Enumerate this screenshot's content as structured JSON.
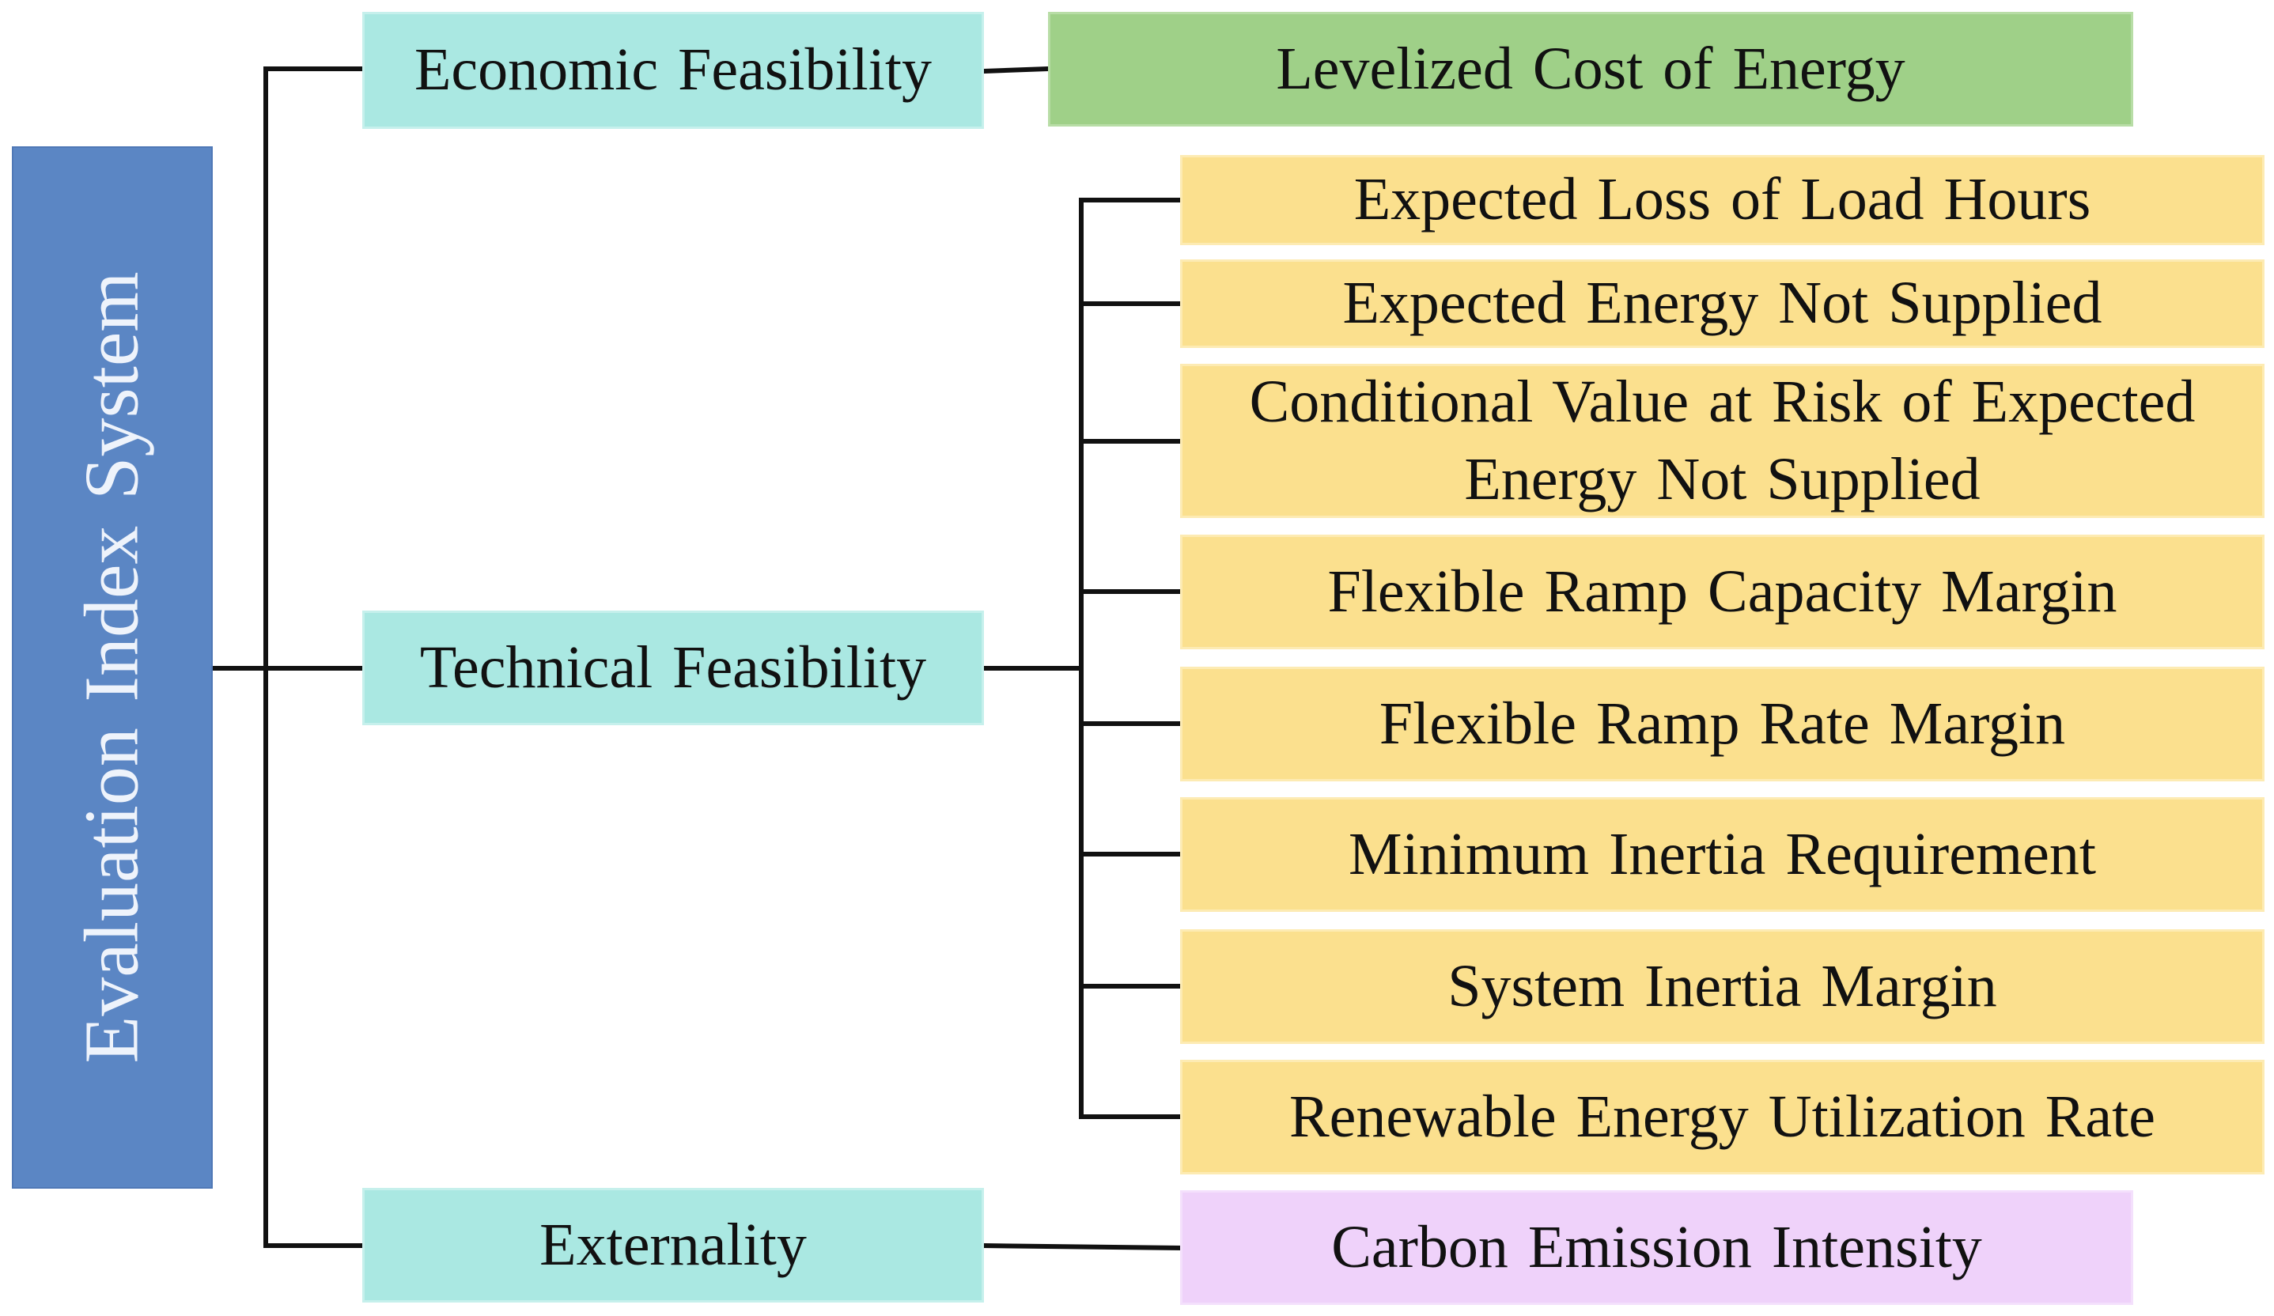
{
  "root": {
    "label": "Evaluation Index System",
    "color": "#5b86c4"
  },
  "categories": {
    "economic": "Economic Feasibility",
    "technical": "Technical Feasibility",
    "externality": "Externality"
  },
  "indicators": {
    "economic": [
      "Levelized Cost of Energy"
    ],
    "technical": [
      "Expected Loss of Load Hours",
      "Expected Energy Not Supplied",
      "Conditional Value at Risk of Expected Energy Not Supplied",
      "Flexible Ramp Capacity Margin",
      "Flexible Ramp Rate Margin",
      "Minimum Inertia Requirement",
      "System Inertia Margin",
      "Renewable Energy Utilization Rate"
    ],
    "externality": [
      "Carbon Emission Intensity"
    ]
  },
  "colors": {
    "category": "#aae8e2",
    "economic_indicator": "#9fd088",
    "technical_indicator": "#fbe08e",
    "externality_indicator": "#efd2fa",
    "connector": "#111111"
  }
}
